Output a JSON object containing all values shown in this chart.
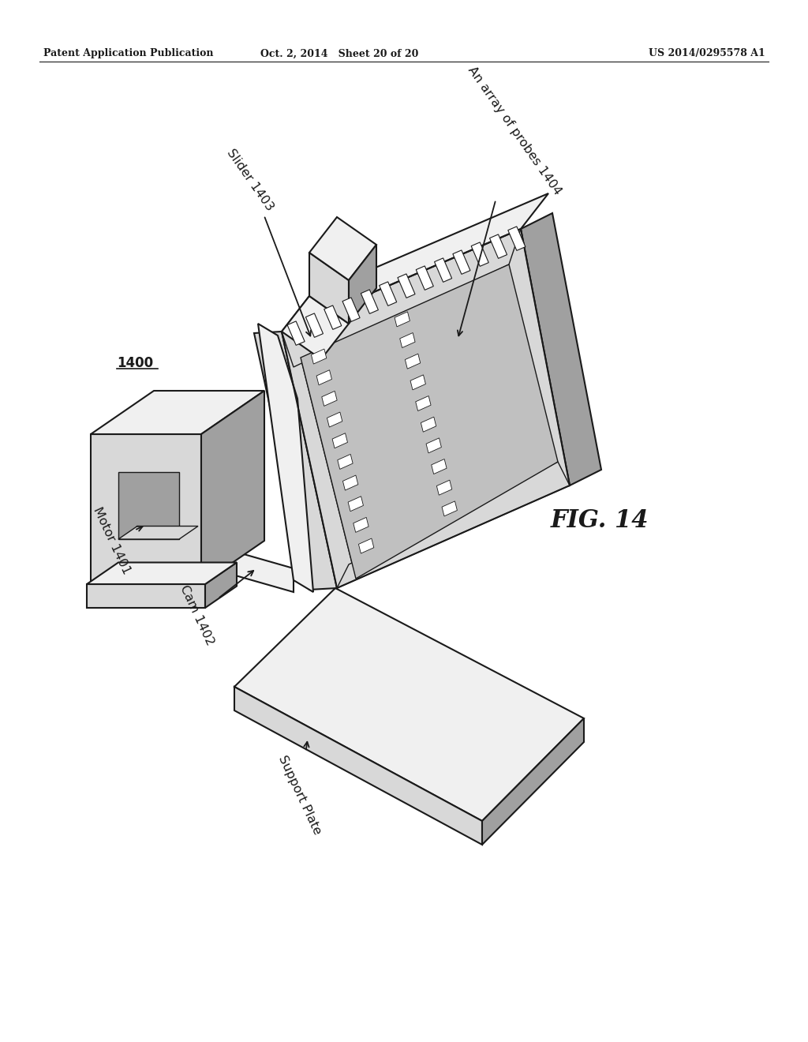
{
  "background_color": "#ffffff",
  "header_left": "Patent Application Publication",
  "header_center": "Oct. 2, 2014   Sheet 20 of 20",
  "header_right": "US 2014/0295578 A1",
  "fig_label": "FIG. 14",
  "part_number": "1400",
  "line_color": "#1a1a1a",
  "fill_white": "#ffffff",
  "fill_light": "#f0f0f0",
  "fill_mid": "#d8d8d8",
  "fill_dark": "#a0a0a0",
  "fill_darker": "#787878",
  "fill_probe_bg": "#888888"
}
